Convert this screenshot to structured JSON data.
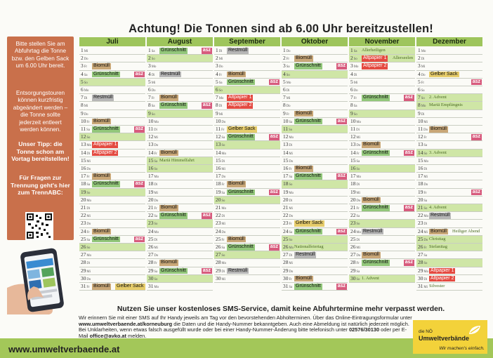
{
  "title": "Achtung! Die Tonnen sind ab 6.00 Uhr bereitzustellen!",
  "sidebar": {
    "p1": "Bitte stellen Sie am Abfuhrtag die Tonne bzw. den Gelben Sack um 6.00 Uhr bereit.",
    "p2": "Entsorgungstouren können kurzfristig abgeändert werden – die Tonne sollte jederzeit entleert werden können.",
    "p3": "Unser Tipp: die Tonne schon am Vortag bereitstellen!",
    "p4": "Für Fragen zur Trennung geht's hier zum TrennABC:"
  },
  "colors": {
    "green": "#9ec55c",
    "bio": "#c9a777",
    "gruen": "#92c77a",
    "rest": "#b6b6b6",
    "gelb": "#e6cc6a",
    "alt": "#e44a41",
    "asz": "#d75b7d",
    "sidebar": "#c9704b"
  },
  "labels": {
    "bio": "Biomüll",
    "gruen": "Grünschnitt",
    "rest": "Restmüll",
    "gelb": "Gelber Sack",
    "alt1": "Altpapier 1",
    "alt2": "Altpapier 2",
    "asz": "asz"
  },
  "months": [
    {
      "name": "Juli",
      "days": 31,
      "wd": [
        "Mi",
        "Do",
        "Fr",
        "Sa",
        "So",
        "Mo",
        "Di",
        "Mi",
        "Do",
        "Fr",
        "Sa",
        "So",
        "Mo",
        "Di",
        "Mi",
        "Do",
        "Fr",
        "Sa",
        "So",
        "Mo",
        "Di",
        "Mi",
        "Do",
        "Fr",
        "Sa",
        "So",
        "Mo",
        "Di",
        "Mi",
        "Do",
        "Fr"
      ],
      "sun": [
        5,
        12,
        19,
        26
      ],
      "ev": {
        "3": [
          "bio"
        ],
        "4": [
          "gruen",
          "asz"
        ],
        "7": [
          "rest"
        ],
        "10": [
          "bio"
        ],
        "11": [
          "gruen",
          "asz"
        ],
        "13": [
          "alt1"
        ],
        "14": [
          "alt2"
        ],
        "17": [
          "bio"
        ],
        "18": [
          "gruen",
          "asz"
        ],
        "24": [
          "bio"
        ],
        "25": [
          "gruen",
          "asz"
        ],
        "31": [
          "bio",
          "gelb"
        ]
      },
      "notes": {}
    },
    {
      "name": "August",
      "days": 31,
      "wd": [
        "Sa",
        "So",
        "Mo",
        "Di",
        "Mi",
        "Do",
        "Fr",
        "Sa",
        "So",
        "Mo",
        "Di",
        "Mi",
        "Do",
        "Fr",
        "Sa",
        "So",
        "Mo",
        "Di",
        "Mi",
        "Do",
        "Fr",
        "Sa",
        "So",
        "Mo",
        "Di",
        "Mi",
        "Do",
        "Fr",
        "Sa",
        "So",
        "Mo"
      ],
      "sun": [
        2,
        9,
        16,
        23,
        30
      ],
      "hol": [
        15
      ],
      "ev": {
        "1": [
          "gruen",
          "asz"
        ],
        "4": [
          "rest"
        ],
        "7": [
          "bio"
        ],
        "8": [
          "gruen",
          "asz"
        ],
        "14": [
          "bio"
        ],
        "21": [
          "bio"
        ],
        "22": [
          "gruen",
          "asz"
        ],
        "28": [
          "bio"
        ],
        "29": [
          "gruen",
          "asz"
        ]
      },
      "notes": {
        "15": "Mariä Himmelfahrt"
      }
    },
    {
      "name": "September",
      "days": 30,
      "wd": [
        "Di",
        "Mi",
        "Do",
        "Fr",
        "Sa",
        "So",
        "Mo",
        "Di",
        "Mi",
        "Do",
        "Fr",
        "Sa",
        "So",
        "Mo",
        "Di",
        "Mi",
        "Do",
        "Fr",
        "Sa",
        "So",
        "Mo",
        "Di",
        "Mi",
        "Do",
        "Fr",
        "Sa",
        "So",
        "Mo",
        "Di",
        "Mi"
      ],
      "sun": [
        6,
        13,
        20,
        27
      ],
      "ev": {
        "1": [
          "rest"
        ],
        "4": [
          "bio"
        ],
        "5": [
          "gruen",
          "asz"
        ],
        "7": [
          "alt1"
        ],
        "8": [
          "alt2"
        ],
        "11": [
          "gelb"
        ],
        "12": [
          "gruen",
          "asz"
        ],
        "18": [
          "bio"
        ],
        "19": [
          "gruen",
          "asz"
        ],
        "25": [
          "bio"
        ],
        "26": [
          "gruen",
          "asz"
        ],
        "29": [
          "rest"
        ]
      },
      "notes": {}
    },
    {
      "name": "Oktober",
      "days": 31,
      "wd": [
        "Do",
        "Fr",
        "Sa",
        "So",
        "Mo",
        "Di",
        "Mi",
        "Do",
        "Fr",
        "Sa",
        "So",
        "Mo",
        "Di",
        "Mi",
        "Do",
        "Fr",
        "Sa",
        "So",
        "Mo",
        "Di",
        "Mi",
        "Do",
        "Fr",
        "Sa",
        "So",
        "Mo",
        "Di",
        "Mi",
        "Do",
        "Fr",
        "Sa"
      ],
      "sun": [
        4,
        11,
        18,
        25
      ],
      "hol": [
        26
      ],
      "ev": {
        "2": [
          "bio"
        ],
        "3": [
          "gruen",
          "asz"
        ],
        "9": [
          "bio"
        ],
        "10": [
          "gruen",
          "asz"
        ],
        "16": [
          "bio"
        ],
        "17": [
          "gruen",
          "asz"
        ],
        "23": [
          "gelb"
        ],
        "24": [
          "gruen",
          "asz"
        ],
        "27": [
          "rest"
        ],
        "30": [
          "bio"
        ],
        "31": [
          "gruen",
          "asz"
        ]
      },
      "notes": {
        "26": "Nationalfeiertag"
      }
    },
    {
      "name": "November",
      "days": 30,
      "wd": [
        "Sa",
        "So",
        "Mo",
        "Di",
        "Mi",
        "Do",
        "Fr",
        "Sa",
        "So",
        "Mo",
        "Di",
        "Mi",
        "Do",
        "Fr",
        "Sa",
        "So",
        "Mo",
        "Di",
        "Mi",
        "Do",
        "Fr",
        "Sa",
        "So",
        "Mo",
        "Di",
        "Mi",
        "Do",
        "Fr",
        "Sa",
        "So"
      ],
      "sun": [
        2,
        9,
        16,
        23,
        30
      ],
      "hol": [
        1
      ],
      "ev": {
        "2": [
          "alt1"
        ],
        "3": [
          "alt2"
        ],
        "7": [
          "gruen",
          "asz"
        ],
        "13": [
          "bio"
        ],
        "14": [
          "gruen",
          "asz"
        ],
        "20": [
          "bio"
        ],
        "21": [
          "gruen",
          "asz"
        ],
        "24": [
          "rest"
        ],
        "27": [
          "bio"
        ],
        "28": [
          "gruen",
          "asz"
        ]
      },
      "notes": {
        "1": "Allerheiligen",
        "2": "Allerseelen",
        "30": "1. Advent"
      }
    },
    {
      "name": "Dezember",
      "days": 31,
      "wd": [
        "Mo",
        "Di",
        "Mi",
        "Do",
        "Fr",
        "Sa",
        "So",
        "Mo",
        "Di",
        "Mi",
        "Do",
        "Fr",
        "Sa",
        "So",
        "Mo",
        "Di",
        "Mi",
        "Do",
        "Fr",
        "Sa",
        "So",
        "Mo",
        "Di",
        "Mi",
        "Do",
        "Fr",
        "Sa",
        "So",
        "Mo",
        "Di",
        "Mi"
      ],
      "sun": [
        7,
        14,
        21,
        28
      ],
      "hol": [
        8,
        25,
        26
      ],
      "ev": {
        "4": [
          "gelb"
        ],
        "5": [
          "asz"
        ],
        "11": [
          "bio"
        ],
        "12": [
          "asz"
        ],
        "19": [
          "asz"
        ],
        "22": [
          "rest"
        ],
        "24": [
          "bio"
        ],
        "29": [
          "alt1"
        ],
        "30": [
          "alt2"
        ]
      },
      "notes": {
        "7": "2. Advent",
        "8": "Mariä Empfängnis",
        "14": "3. Advent",
        "21": "4. Advent",
        "24": "Heiliger Abend",
        "25": "Christtag",
        "26": "Stefanitag",
        "31": "Silvester"
      }
    }
  ],
  "sms": {
    "headline": "Nutzen Sie unser kostenloses SMS-Service, damit keine Abfuhrtermine mehr verpasst werden.",
    "t1": "Wir erinnern Sie mit einer SMS auf Ihr Handy jeweils am Tag vor den bevorstehenden Abholterminen. Über das Online-Eintragungsformular unter ",
    "t1b": "www.umweltverbaende.at/korneuburg",
    "t2": " die Daten und die Handy-Nummer bekanntgeben. Auch eine Abmeldung ist natürlich jederzeit möglich. Bei Unklarheiten, wenn etwas falsch ausgefüllt wurde oder bei einer Handy-Nummer-Änderung bitte telefonisch unter ",
    "t2b": "02576/30130",
    "t3": " oder per E-Mail ",
    "t3b": "office@avko.at",
    "t4": " melden."
  },
  "footer": {
    "url": "www.umweltverbaende.at"
  },
  "logo": {
    "line1": "die NÖ",
    "line2": "Umweltverbände",
    "slogan": "Wir machen's einfach."
  }
}
